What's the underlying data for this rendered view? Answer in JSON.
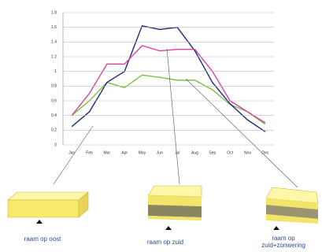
{
  "chart_data": {
    "type": "line",
    "categories": [
      "Jan",
      "Feb",
      "Mar",
      "Apr",
      "May",
      "Jun",
      "Jul",
      "Aug",
      "Sep",
      "Oct",
      "Nov",
      "Dec"
    ],
    "series": [
      {
        "name": "raam op oost",
        "color": "#e0409a",
        "values": [
          0.4,
          0.7,
          1.1,
          1.1,
          1.35,
          1.28,
          1.3,
          1.3,
          1.0,
          0.6,
          0.45,
          0.3
        ]
      },
      {
        "name": "raam op zuid",
        "color": "#1f2a7a",
        "values": [
          0.25,
          0.45,
          0.85,
          1.0,
          1.62,
          1.57,
          1.6,
          1.28,
          0.85,
          0.56,
          0.34,
          0.18
        ]
      },
      {
        "name": "raam op zuid+zonwering",
        "color": "#7cc242",
        "values": [
          0.4,
          0.6,
          0.85,
          0.78,
          0.95,
          0.92,
          0.88,
          0.88,
          0.75,
          0.55,
          0.45,
          0.28
        ]
      }
    ],
    "ylim": [
      0,
      1.8
    ],
    "yticks": [
      0,
      0.2,
      0.4,
      0.6,
      0.8,
      1,
      1.2,
      1.4,
      1.6,
      1.8
    ],
    "grid": true
  }
}
